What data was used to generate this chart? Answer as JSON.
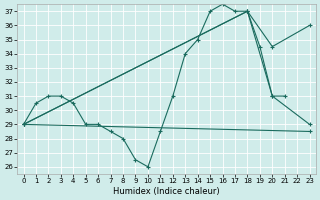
{
  "bg_color": "#d0ecea",
  "line_color": "#1a6b5e",
  "grid_color": "#ffffff",
  "xlabel": "Humidex (Indice chaleur)",
  "xlim": [
    -0.5,
    23.5
  ],
  "ylim": [
    25.5,
    37.5
  ],
  "xticks": [
    0,
    1,
    2,
    3,
    4,
    5,
    6,
    7,
    8,
    9,
    10,
    11,
    12,
    13,
    14,
    15,
    16,
    17,
    18,
    19,
    20,
    21,
    22,
    23
  ],
  "yticks": [
    26,
    27,
    28,
    29,
    30,
    31,
    32,
    33,
    34,
    35,
    36,
    37
  ],
  "tick_fontsize": 5,
  "xlabel_fontsize": 6,
  "line_width": 0.8,
  "marker_size": 3.5,
  "series1_x": [
    0,
    1,
    2,
    3,
    4,
    5,
    6,
    7,
    8,
    9,
    10,
    11,
    12,
    13,
    14,
    15,
    16,
    17,
    18,
    19,
    20,
    21
  ],
  "series1_y": [
    29.0,
    30.5,
    31.0,
    31.0,
    30.5,
    29.0,
    29.0,
    28.5,
    28.0,
    26.5,
    26.0,
    28.5,
    31.0,
    34.0,
    35.0,
    37.0,
    37.5,
    37.0,
    37.0,
    34.5,
    31.0,
    31.0
  ],
  "series2_x": [
    0,
    18,
    20,
    23
  ],
  "series2_y": [
    29.0,
    37.0,
    34.5,
    36.0
  ],
  "series3_x": [
    0,
    18,
    20,
    23
  ],
  "series3_y": [
    29.0,
    37.0,
    31.0,
    29.0
  ],
  "series4_x": [
    0,
    23
  ],
  "series4_y": [
    29.0,
    28.5
  ]
}
